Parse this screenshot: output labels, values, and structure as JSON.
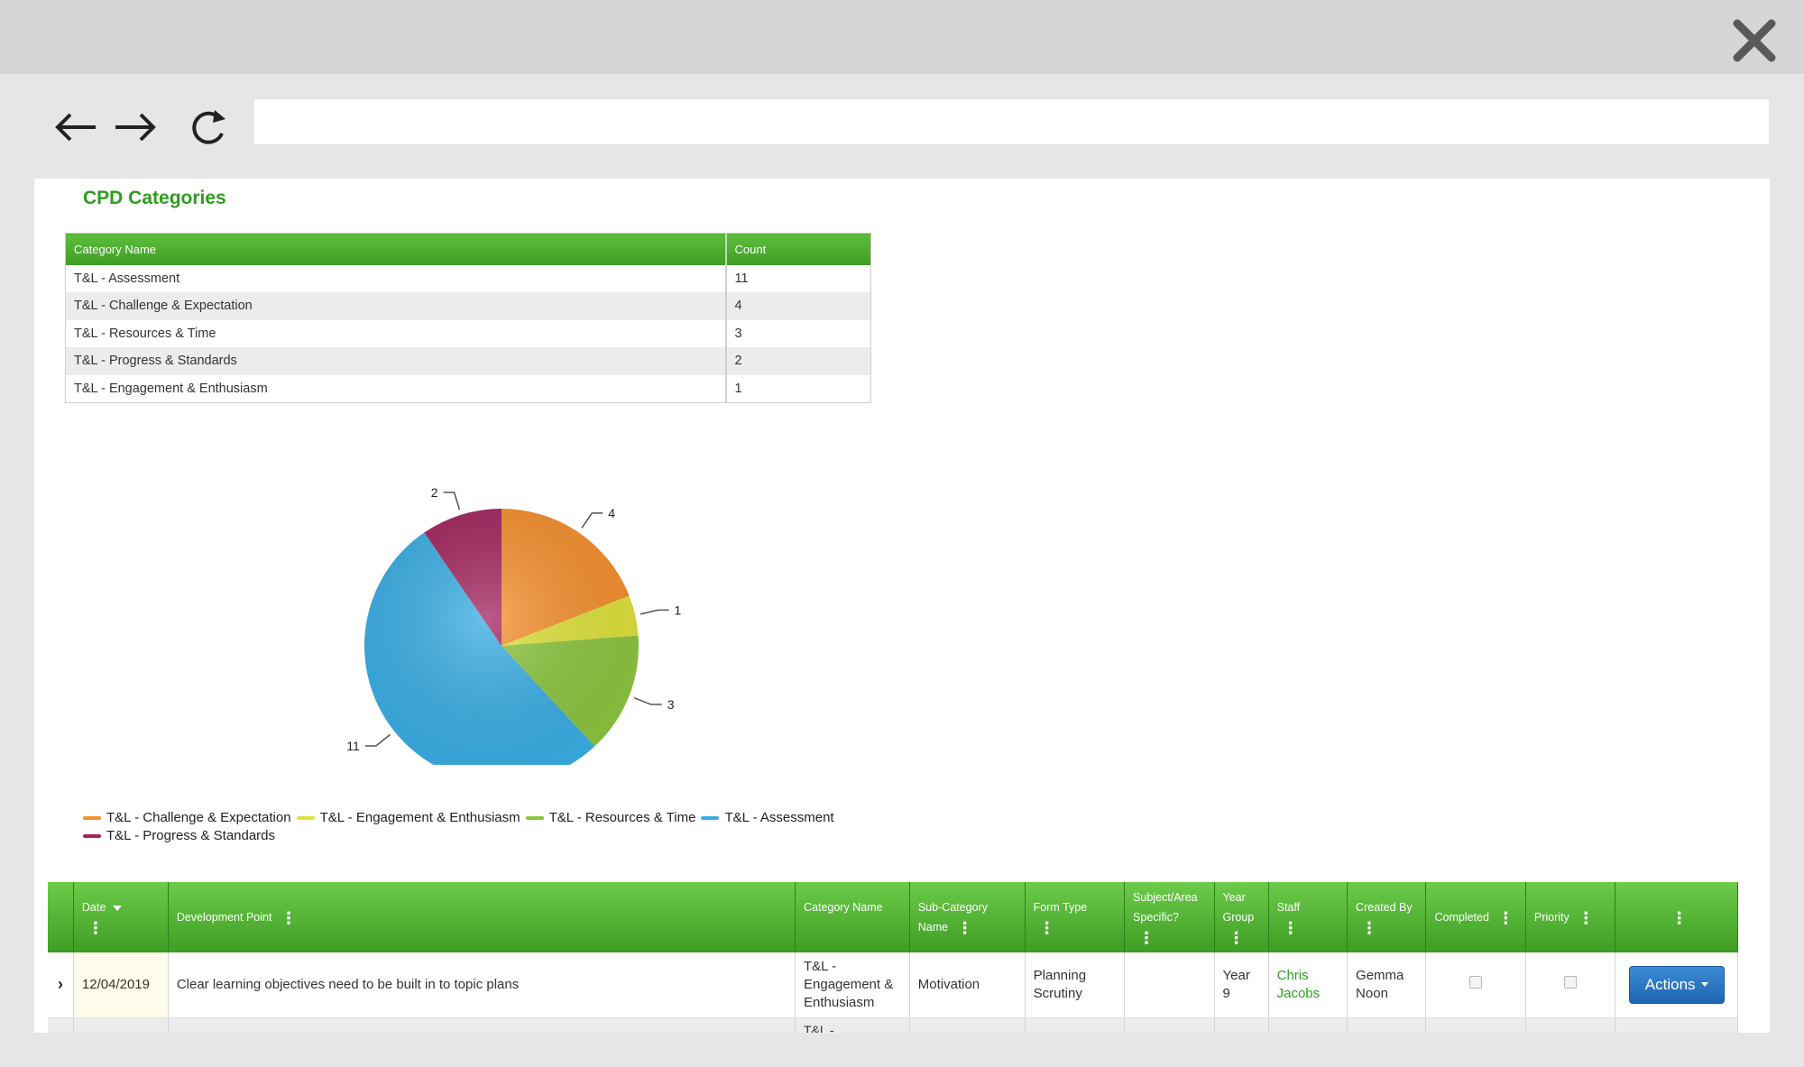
{
  "browser": {
    "url_value": "",
    "back_icon": "arrow-left-icon",
    "forward_icon": "arrow-right-icon",
    "reload_icon": "reload-icon",
    "close_icon": "close-icon"
  },
  "page": {
    "title": "CPD Categories"
  },
  "category_table": {
    "headers": [
      "Category Name",
      "Count"
    ],
    "rows": [
      {
        "name": "T&L - Assessment",
        "count": "11"
      },
      {
        "name": "T&L - Challenge & Expectation",
        "count": "4"
      },
      {
        "name": "T&L - Resources & Time",
        "count": "3"
      },
      {
        "name": "T&L - Progress & Standards",
        "count": "2"
      },
      {
        "name": "T&L - Engagement & Enthusiasm",
        "count": "1"
      }
    ]
  },
  "chart_data": {
    "type": "pie",
    "title": "",
    "slices": [
      {
        "label": "T&L - Challenge & Expectation",
        "value": 4,
        "color": "#f7902e"
      },
      {
        "label": "T&L - Engagement & Enthusiasm",
        "value": 1,
        "color": "#dfe33a"
      },
      {
        "label": "T&L - Resources & Time",
        "value": 3,
        "color": "#8cc63f"
      },
      {
        "label": "T&L - Assessment",
        "value": 11,
        "color": "#3aaee5"
      },
      {
        "label": "T&L - Progress & Standards",
        "value": 2,
        "color": "#a3245e"
      }
    ],
    "legend_position": "bottom-left"
  },
  "grid": {
    "headers": {
      "date": "Date",
      "development_point": "Development Point",
      "category_name": "Category Name",
      "sub_category_name": "Sub-Category Name",
      "form_type": "Form Type",
      "subject_area_specific": "Subject/Area Specific?",
      "year_group": "Year Group",
      "staff": "Staff",
      "created_by": "Created By",
      "completed": "Completed",
      "priority": "Priority"
    },
    "rows": [
      {
        "date": "12/04/2019",
        "development_point": "Clear learning objectives need to be built in to topic plans",
        "category_name": "T&L - Engagement & Enthusiasm",
        "sub_category_name": "Motivation",
        "form_type": "Planning Scrutiny",
        "subject_area_specific": "",
        "year_group": "Year 9",
        "staff": "Chris Jacobs",
        "created_by": "Gemma Noon",
        "completed": false,
        "priority": false,
        "action_label": "Actions"
      },
      {
        "date": "",
        "development_point": "",
        "category_name": "T&L -",
        "sub_category_name": "",
        "form_type": "",
        "subject_area_specific": "",
        "year_group": "",
        "staff": "",
        "created_by": "",
        "completed": false,
        "priority": false,
        "action_label": ""
      }
    ]
  }
}
